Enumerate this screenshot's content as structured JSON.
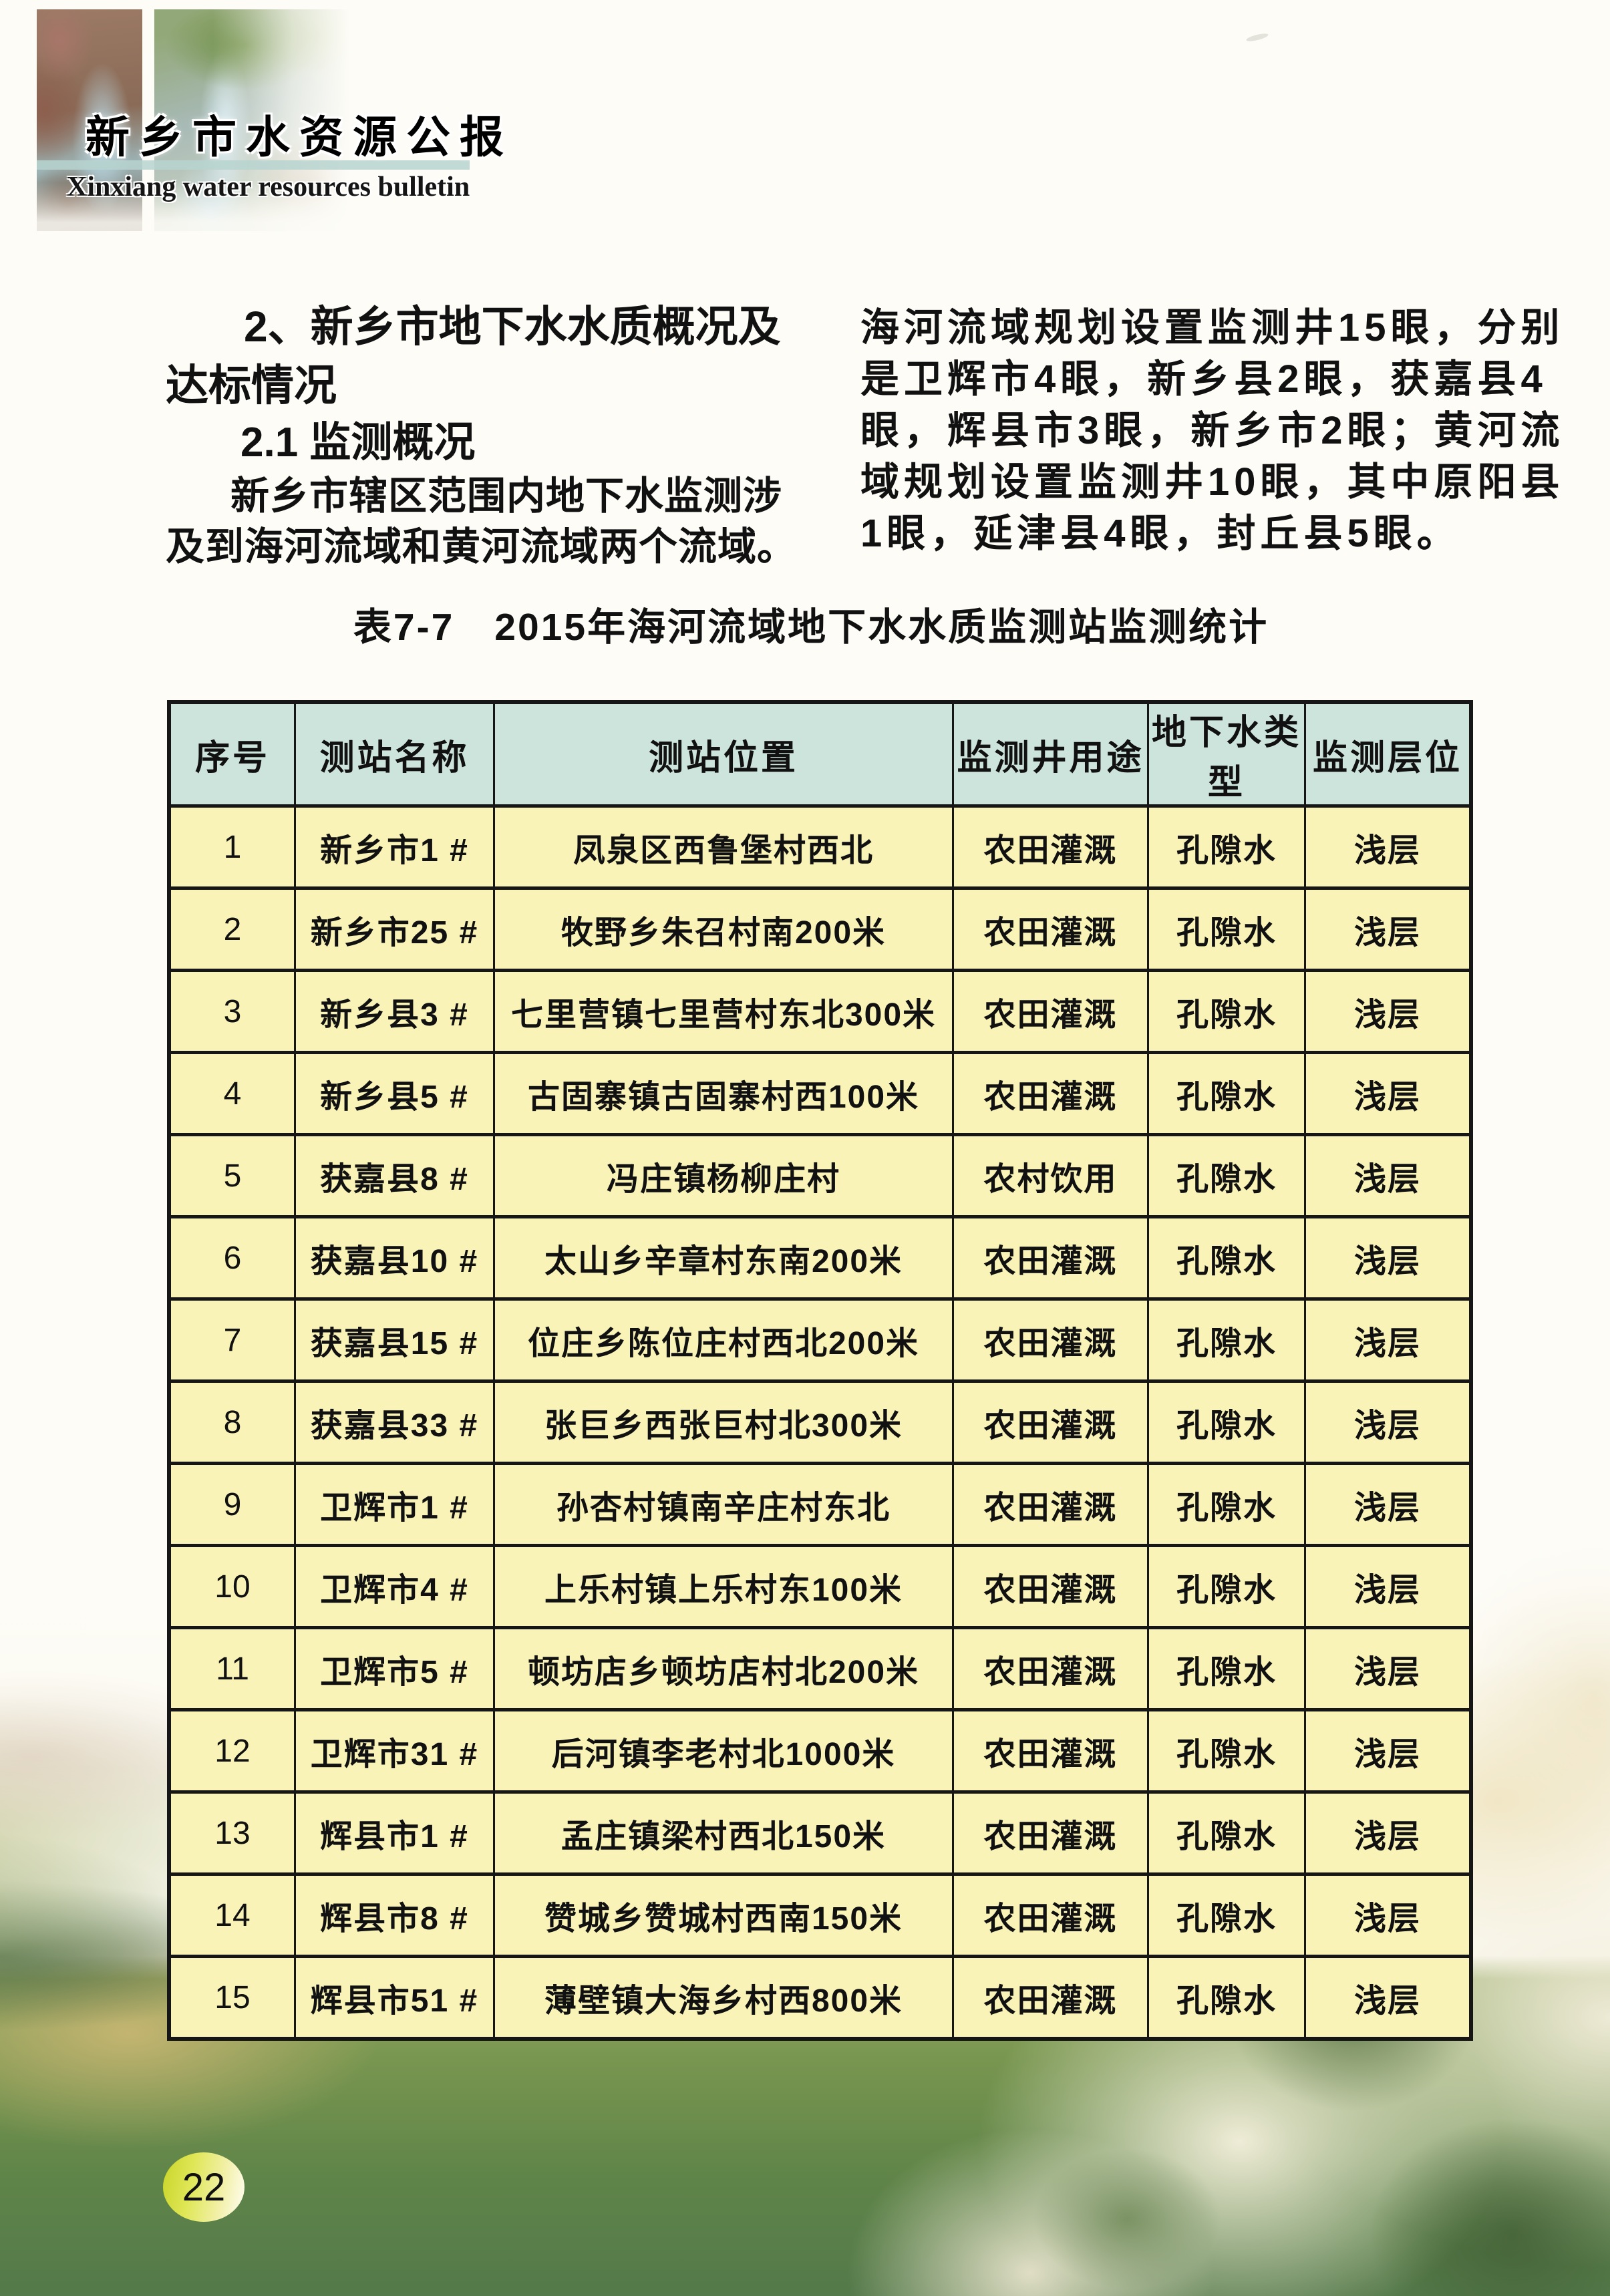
{
  "header": {
    "title_cn": "新乡市水资源公报",
    "title_en": "Xinxiang water resources bulletin"
  },
  "body": {
    "left": {
      "heading_line1": "2、新乡市地下水水质概况及",
      "heading_line2": "达标情况",
      "subheading": "2.1 监测概况",
      "para_line1": "新乡市辖区范围内地下水监测涉",
      "para_line2": "及到海河流域和黄河流域两个流域。"
    },
    "right": {
      "lines": [
        "海河流域规划设置监测井15眼，分别",
        "是卫辉市4眼，新乡县2眼，获嘉县4",
        "眼，辉县市3眼，新乡市2眼；黄河流",
        "域规划设置监测井10眼，其中原阳县",
        "1眼，延津县4眼，封丘县5眼。"
      ]
    }
  },
  "table": {
    "title": "表7-7　2015年海河流域地下水水质监测站监测统计",
    "headers": [
      "序号",
      "测站名称",
      "测站位置",
      "监测井用途",
      "地下水类型",
      "监测层位"
    ],
    "rows": [
      [
        "1",
        "新乡市1 #",
        "凤泉区西鲁堡村西北",
        "农田灌溉",
        "孔隙水",
        "浅层"
      ],
      [
        "2",
        "新乡市25 #",
        "牧野乡朱召村南200米",
        "农田灌溉",
        "孔隙水",
        "浅层"
      ],
      [
        "3",
        "新乡县3 #",
        "七里营镇七里营村东北300米",
        "农田灌溉",
        "孔隙水",
        "浅层"
      ],
      [
        "4",
        "新乡县5 #",
        "古固寨镇古固寨村西100米",
        "农田灌溉",
        "孔隙水",
        "浅层"
      ],
      [
        "5",
        "获嘉县8 #",
        "冯庄镇杨柳庄村",
        "农村饮用",
        "孔隙水",
        "浅层"
      ],
      [
        "6",
        "获嘉县10 #",
        "太山乡辛章村东南200米",
        "农田灌溉",
        "孔隙水",
        "浅层"
      ],
      [
        "7",
        "获嘉县15 #",
        "位庄乡陈位庄村西北200米",
        "农田灌溉",
        "孔隙水",
        "浅层"
      ],
      [
        "8",
        "获嘉县33 #",
        "张巨乡西张巨村北300米",
        "农田灌溉",
        "孔隙水",
        "浅层"
      ],
      [
        "9",
        "卫辉市1 #",
        "孙杏村镇南辛庄村东北",
        "农田灌溉",
        "孔隙水",
        "浅层"
      ],
      [
        "10",
        "卫辉市4 #",
        "上乐村镇上乐村东100米",
        "农田灌溉",
        "孔隙水",
        "浅层"
      ],
      [
        "11",
        "卫辉市5 #",
        "顿坊店乡顿坊店村北200米",
        "农田灌溉",
        "孔隙水",
        "浅层"
      ],
      [
        "12",
        "卫辉市31 #",
        "后河镇李老村北1000米",
        "农田灌溉",
        "孔隙水",
        "浅层"
      ],
      [
        "13",
        "辉县市1 #",
        "孟庄镇梁村西北150米",
        "农田灌溉",
        "孔隙水",
        "浅层"
      ],
      [
        "14",
        "辉县市8 #",
        "赞城乡赞城村西南150米",
        "农田灌溉",
        "孔隙水",
        "浅层"
      ],
      [
        "15",
        "辉县市51 #",
        "薄壁镇大海乡村西800米",
        "农田灌溉",
        "孔隙水",
        "浅层"
      ]
    ]
  },
  "page": {
    "number": "22"
  },
  "colors": {
    "table_header_bg": "#cde4dc",
    "table_body_bg": "#f9f3b8",
    "table_border": "#161616",
    "page_badge": "#dfe757",
    "lake_green": "#6f9155"
  }
}
